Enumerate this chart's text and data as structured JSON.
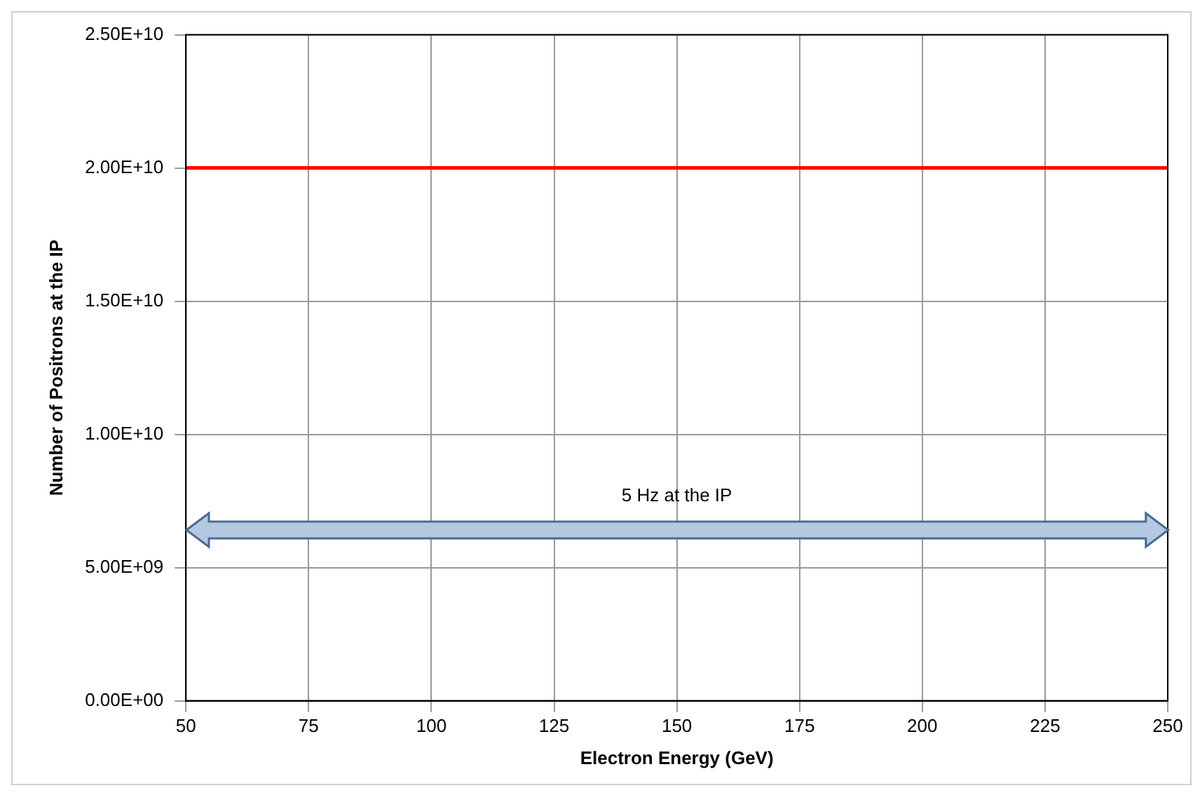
{
  "chart_data": {
    "type": "line",
    "xlabel": "Electron Energy (GeV)",
    "ylabel": "Number of Positrons at the IP",
    "x": [
      50,
      250
    ],
    "series": [
      {
        "color": "#ff0000",
        "values": [
          20000000000,
          20000000000
        ]
      }
    ],
    "xlim": [
      50,
      250
    ],
    "xticks": [
      50,
      75,
      100,
      125,
      150,
      175,
      200,
      225,
      250
    ],
    "ylim": [
      0,
      25000000000
    ],
    "yticks": [
      {
        "value": 0,
        "label": "0.00E+00"
      },
      {
        "value": 5000000000,
        "label": "5.00E+09"
      },
      {
        "value": 10000000000,
        "label": "1.00E+10"
      },
      {
        "value": 15000000000,
        "label": "1.50E+10"
      },
      {
        "value": 20000000000,
        "label": "2.00E+10"
      },
      {
        "value": 25000000000,
        "label": "2.50E+10"
      }
    ],
    "grid": true,
    "legend": false,
    "marker": "none",
    "line_style": "solid",
    "annotations": [
      "5 Hz at the IP"
    ]
  }
}
